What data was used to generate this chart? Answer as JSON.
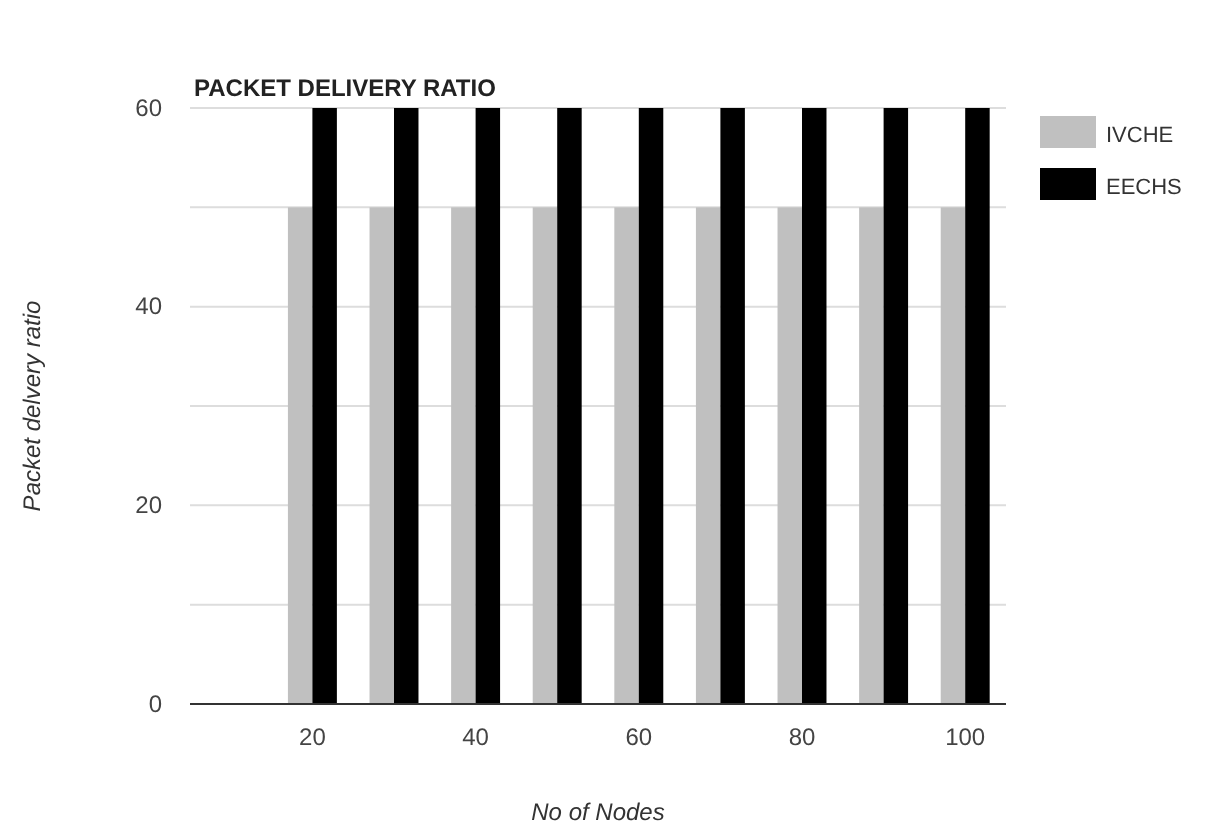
{
  "chart_data": {
    "type": "bar",
    "title": "PACKET DELIVERY RATIO",
    "xlabel": "No of Nodes",
    "ylabel": "Packet delvery ratio",
    "x": [
      10,
      20,
      30,
      40,
      50,
      60,
      70,
      80,
      90,
      100
    ],
    "series": [
      {
        "name": "IVCHE",
        "color": "#c0c0c0",
        "values": [
          0,
          50,
          50,
          50,
          50,
          50,
          50,
          50,
          50,
          50
        ]
      },
      {
        "name": "EECHS",
        "color": "#000000",
        "values": [
          0,
          60,
          60,
          60,
          60,
          60,
          60,
          60,
          60,
          60
        ]
      }
    ],
    "xlim": [
      5,
      105
    ],
    "xticks": [
      20,
      40,
      60,
      80,
      100
    ],
    "ylim": [
      0,
      60
    ],
    "yticks": [
      0,
      {
        "value": 10,
        "label": null
      },
      20,
      {
        "value": 30,
        "label": null
      },
      40,
      {
        "value": 50,
        "label": null
      },
      60
    ],
    "grid": "y",
    "legend": "right"
  }
}
